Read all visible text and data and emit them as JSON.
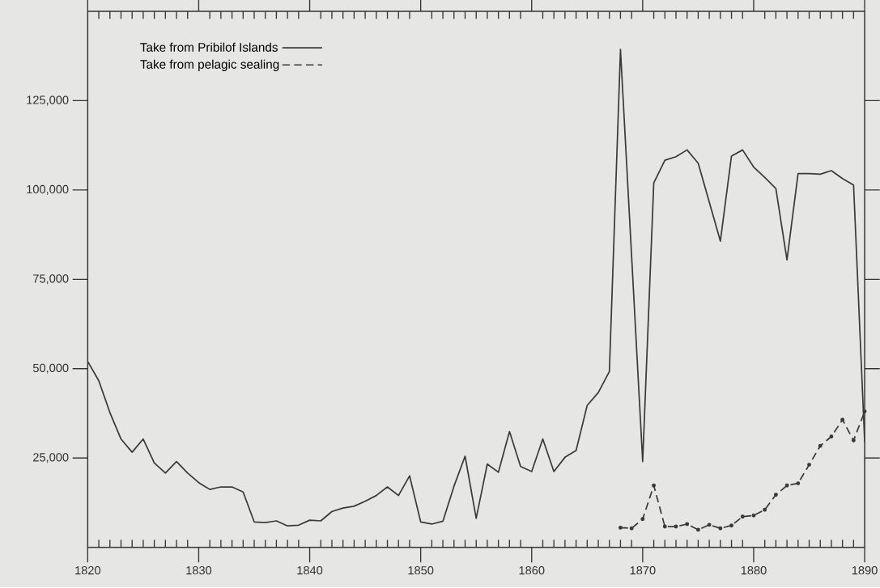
{
  "chart_data": {
    "type": "line",
    "xlim": [
      1820,
      1890
    ],
    "xticks": [
      1820,
      {
        "value": 1821,
        "label": null
      },
      {
        "value": 1822,
        "label": null
      },
      {
        "value": 1823,
        "label": null
      },
      {
        "value": 1824,
        "label": null
      },
      {
        "value": 1825,
        "label": null
      },
      {
        "value": 1826,
        "label": null
      },
      {
        "value": 1827,
        "label": null
      },
      {
        "value": 1828,
        "label": null
      },
      {
        "value": 1829,
        "label": null
      },
      1830,
      {
        "value": 1831,
        "label": null
      },
      {
        "value": 1832,
        "label": null
      },
      {
        "value": 1833,
        "label": null
      },
      {
        "value": 1834,
        "label": null
      },
      {
        "value": 1835,
        "label": null
      },
      {
        "value": 1836,
        "label": null
      },
      {
        "value": 1837,
        "label": null
      },
      {
        "value": 1838,
        "label": null
      },
      {
        "value": 1839,
        "label": null
      },
      1840,
      {
        "value": 1841,
        "label": null
      },
      {
        "value": 1842,
        "label": null
      },
      {
        "value": 1843,
        "label": null
      },
      {
        "value": 1844,
        "label": null
      },
      {
        "value": 1845,
        "label": null
      },
      {
        "value": 1846,
        "label": null
      },
      {
        "value": 1847,
        "label": null
      },
      {
        "value": 1848,
        "label": null
      },
      {
        "value": 1849,
        "label": null
      },
      1850,
      {
        "value": 1851,
        "label": null
      },
      {
        "value": 1852,
        "label": null
      },
      {
        "value": 1853,
        "label": null
      },
      {
        "value": 1854,
        "label": null
      },
      {
        "value": 1855,
        "label": null
      },
      {
        "value": 1856,
        "label": null
      },
      {
        "value": 1857,
        "label": null
      },
      {
        "value": 1858,
        "label": null
      },
      {
        "value": 1859,
        "label": null
      },
      1860,
      {
        "value": 1861,
        "label": null
      },
      {
        "value": 1862,
        "label": null
      },
      {
        "value": 1863,
        "label": null
      },
      {
        "value": 1864,
        "label": null
      },
      {
        "value": 1865,
        "label": null
      },
      {
        "value": 1866,
        "label": null
      },
      {
        "value": 1867,
        "label": null
      },
      {
        "value": 1868,
        "label": null
      },
      {
        "value": 1869,
        "label": null
      },
      1870,
      {
        "value": 1871,
        "label": null
      },
      {
        "value": 1872,
        "label": null
      },
      {
        "value": 1873,
        "label": null
      },
      {
        "value": 1874,
        "label": null
      },
      {
        "value": 1875,
        "label": null
      },
      {
        "value": 1876,
        "label": null
      },
      {
        "value": 1877,
        "label": null
      },
      {
        "value": 1878,
        "label": null
      },
      {
        "value": 1879,
        "label": null
      },
      1880,
      {
        "value": 1881,
        "label": null
      },
      {
        "value": 1882,
        "label": null
      },
      {
        "value": 1883,
        "label": null
      },
      {
        "value": 1884,
        "label": null
      },
      {
        "value": 1885,
        "label": null
      },
      {
        "value": 1886,
        "label": null
      },
      {
        "value": 1887,
        "label": null
      },
      {
        "value": 1888,
        "label": null
      },
      {
        "value": 1889,
        "label": null
      },
      1890
    ],
    "ylim": [
      0,
      150000
    ],
    "yticks": [
      {
        "value": 25000,
        "label": "25,000"
      },
      {
        "value": 50000,
        "label": "50,000"
      },
      {
        "value": 75000,
        "label": "75,000"
      },
      {
        "value": 100000,
        "label": "100,000"
      },
      {
        "value": 125000,
        "label": "125,000"
      }
    ],
    "grid": false,
    "legend": "top left",
    "series": [
      {
        "name": "Take from Pribilof Islands",
        "color": "#3a3a3a",
        "line_style": "solid",
        "marker": "none",
        "x": [
          1820,
          1821,
          1822,
          1823,
          1824,
          1825,
          1826,
          1827,
          1828,
          1829,
          1830,
          1831,
          1832,
          1833,
          1834,
          1835,
          1836,
          1837,
          1838,
          1839,
          1840,
          1841,
          1842,
          1843,
          1844,
          1845,
          1846,
          1847,
          1848,
          1849,
          1850,
          1851,
          1852,
          1853,
          1854,
          1855,
          1856,
          1857,
          1858,
          1859,
          1860,
          1861,
          1862,
          1863,
          1864,
          1865,
          1866,
          1867,
          1868,
          1870,
          1871,
          1872,
          1873,
          1874,
          1875,
          1877,
          1878,
          1879,
          1880,
          1881,
          1882,
          1883,
          1884,
          1885,
          1886,
          1887,
          1888,
          1889,
          1890
        ],
        "values": [
          52000,
          46600,
          37700,
          30300,
          26600,
          30300,
          23600,
          20800,
          24000,
          20800,
          18100,
          16200,
          16900,
          16900,
          15500,
          7100,
          6900,
          7400,
          6000,
          6200,
          7600,
          7400,
          10000,
          11000,
          11500,
          12900,
          14500,
          16900,
          14500,
          20000,
          7100,
          6500,
          7300,
          17100,
          25500,
          8100,
          23300,
          21000,
          32400,
          22600,
          21200,
          30300,
          21200,
          25200,
          27100,
          39700,
          43300,
          49200,
          139300,
          24000,
          102000,
          108300,
          109300,
          111200,
          107500,
          85700,
          109500,
          111200,
          106400,
          103500,
          100400,
          80400,
          104600,
          104600,
          104400,
          105400,
          103200,
          101400,
          29500
        ]
      },
      {
        "name": "Take from pelagic sealing",
        "color": "#3a3a3a",
        "line_style": "dashed",
        "marker": "circle",
        "x": [
          1868,
          1869,
          1870,
          1871,
          1872,
          1873,
          1874,
          1875,
          1876,
          1877,
          1878,
          1879,
          1880,
          1881,
          1882,
          1883,
          1884,
          1885,
          1886,
          1887,
          1888,
          1889,
          1890
        ],
        "values": [
          5500,
          5300,
          7900,
          17300,
          5800,
          5800,
          6500,
          4900,
          6300,
          5300,
          6100,
          8600,
          8900,
          10500,
          14700,
          17300,
          17900,
          23100,
          28400,
          31000,
          35700,
          29900,
          38000
        ]
      }
    ]
  }
}
